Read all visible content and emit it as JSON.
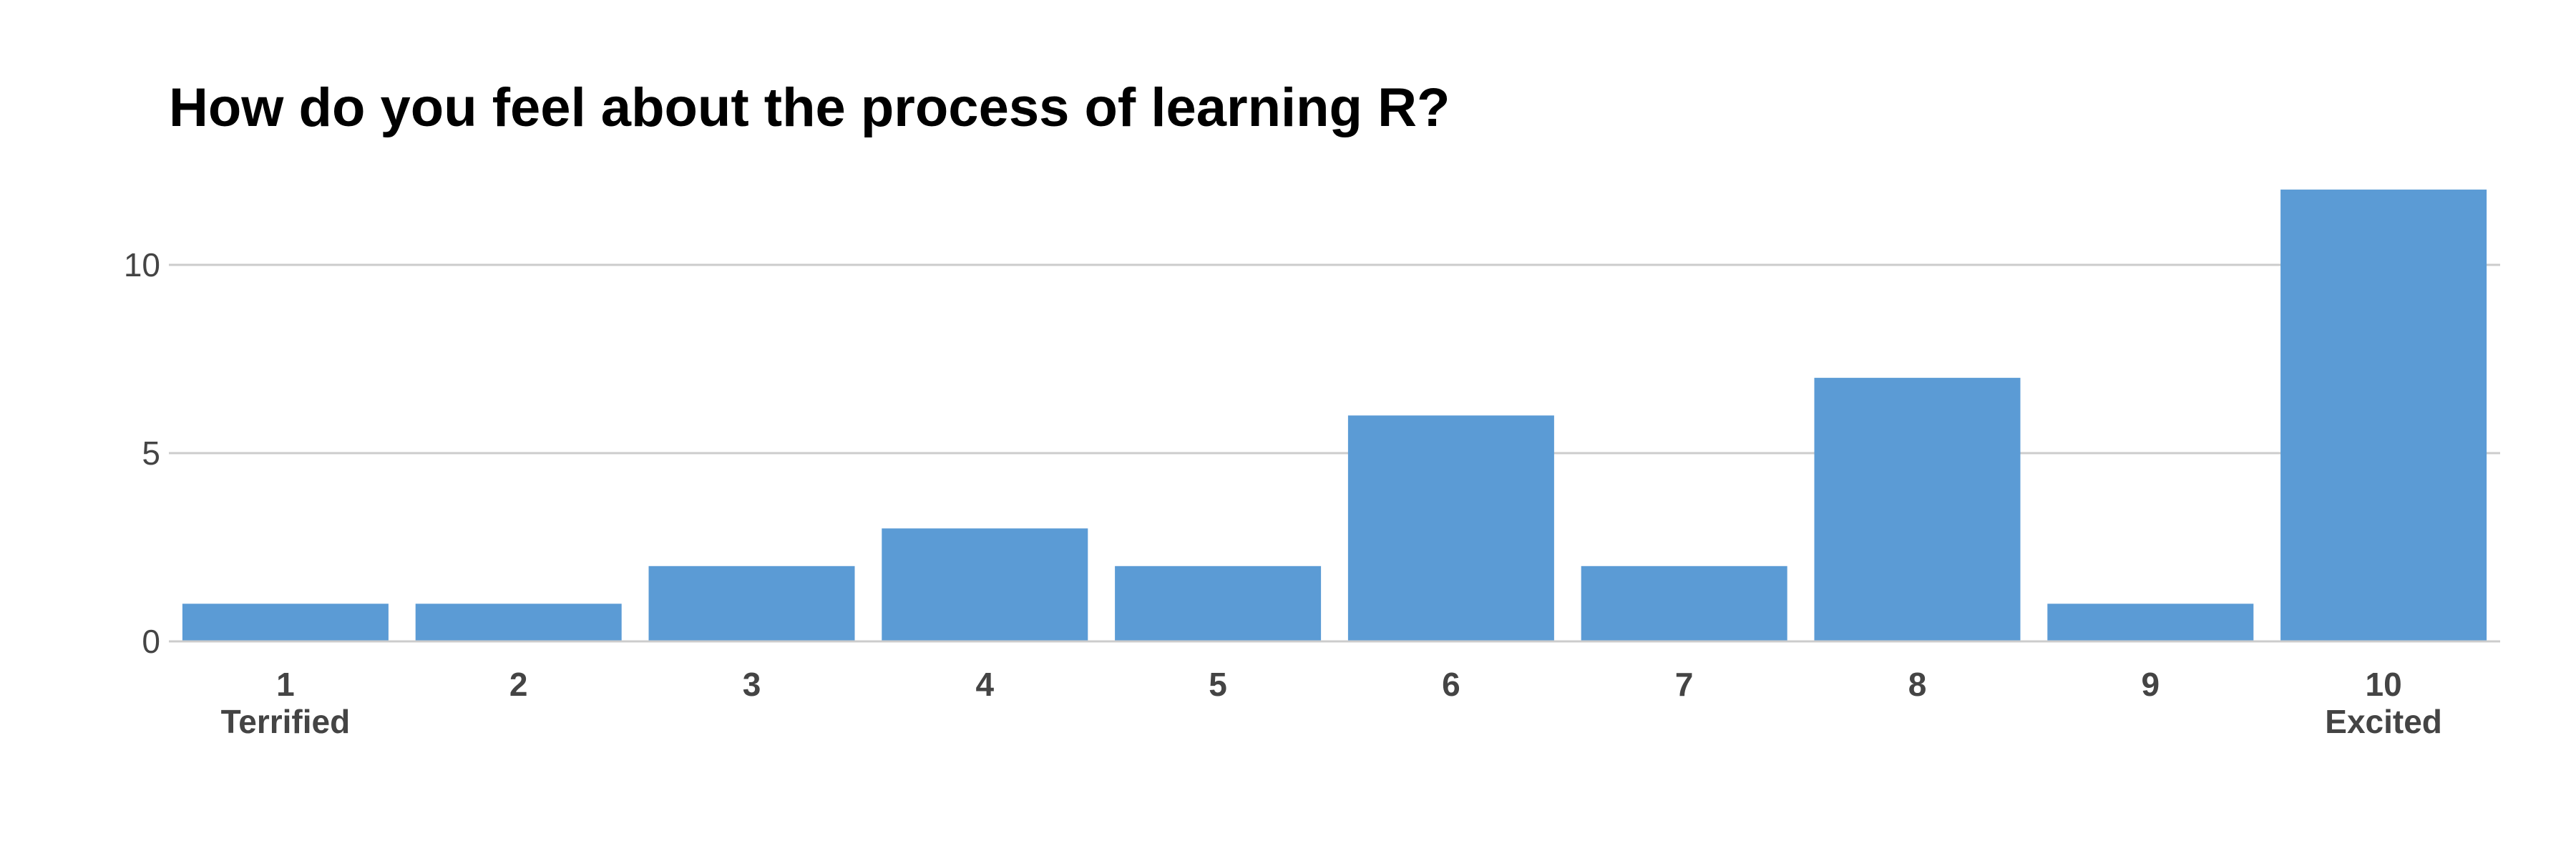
{
  "chart_data": {
    "type": "bar",
    "title": "How do you feel about the process of learning R?",
    "categories": [
      "1",
      "2",
      "3",
      "4",
      "5",
      "6",
      "7",
      "8",
      "9",
      "10"
    ],
    "category_sublabels": [
      "Terrified",
      "",
      "",
      "",
      "",
      "",
      "",
      "",
      "",
      "Excited"
    ],
    "values": [
      1,
      1,
      2,
      3,
      2,
      6,
      2,
      7,
      1,
      12
    ],
    "xlabel": "",
    "ylabel": "",
    "ylim": [
      0,
      12
    ],
    "yticks": [
      0,
      5,
      10
    ],
    "grid": true,
    "legend": "none",
    "colors": {
      "bar": "#5b9bd5",
      "grid": "#cccccc",
      "tick_text": "#444444",
      "title": "#000000"
    }
  }
}
